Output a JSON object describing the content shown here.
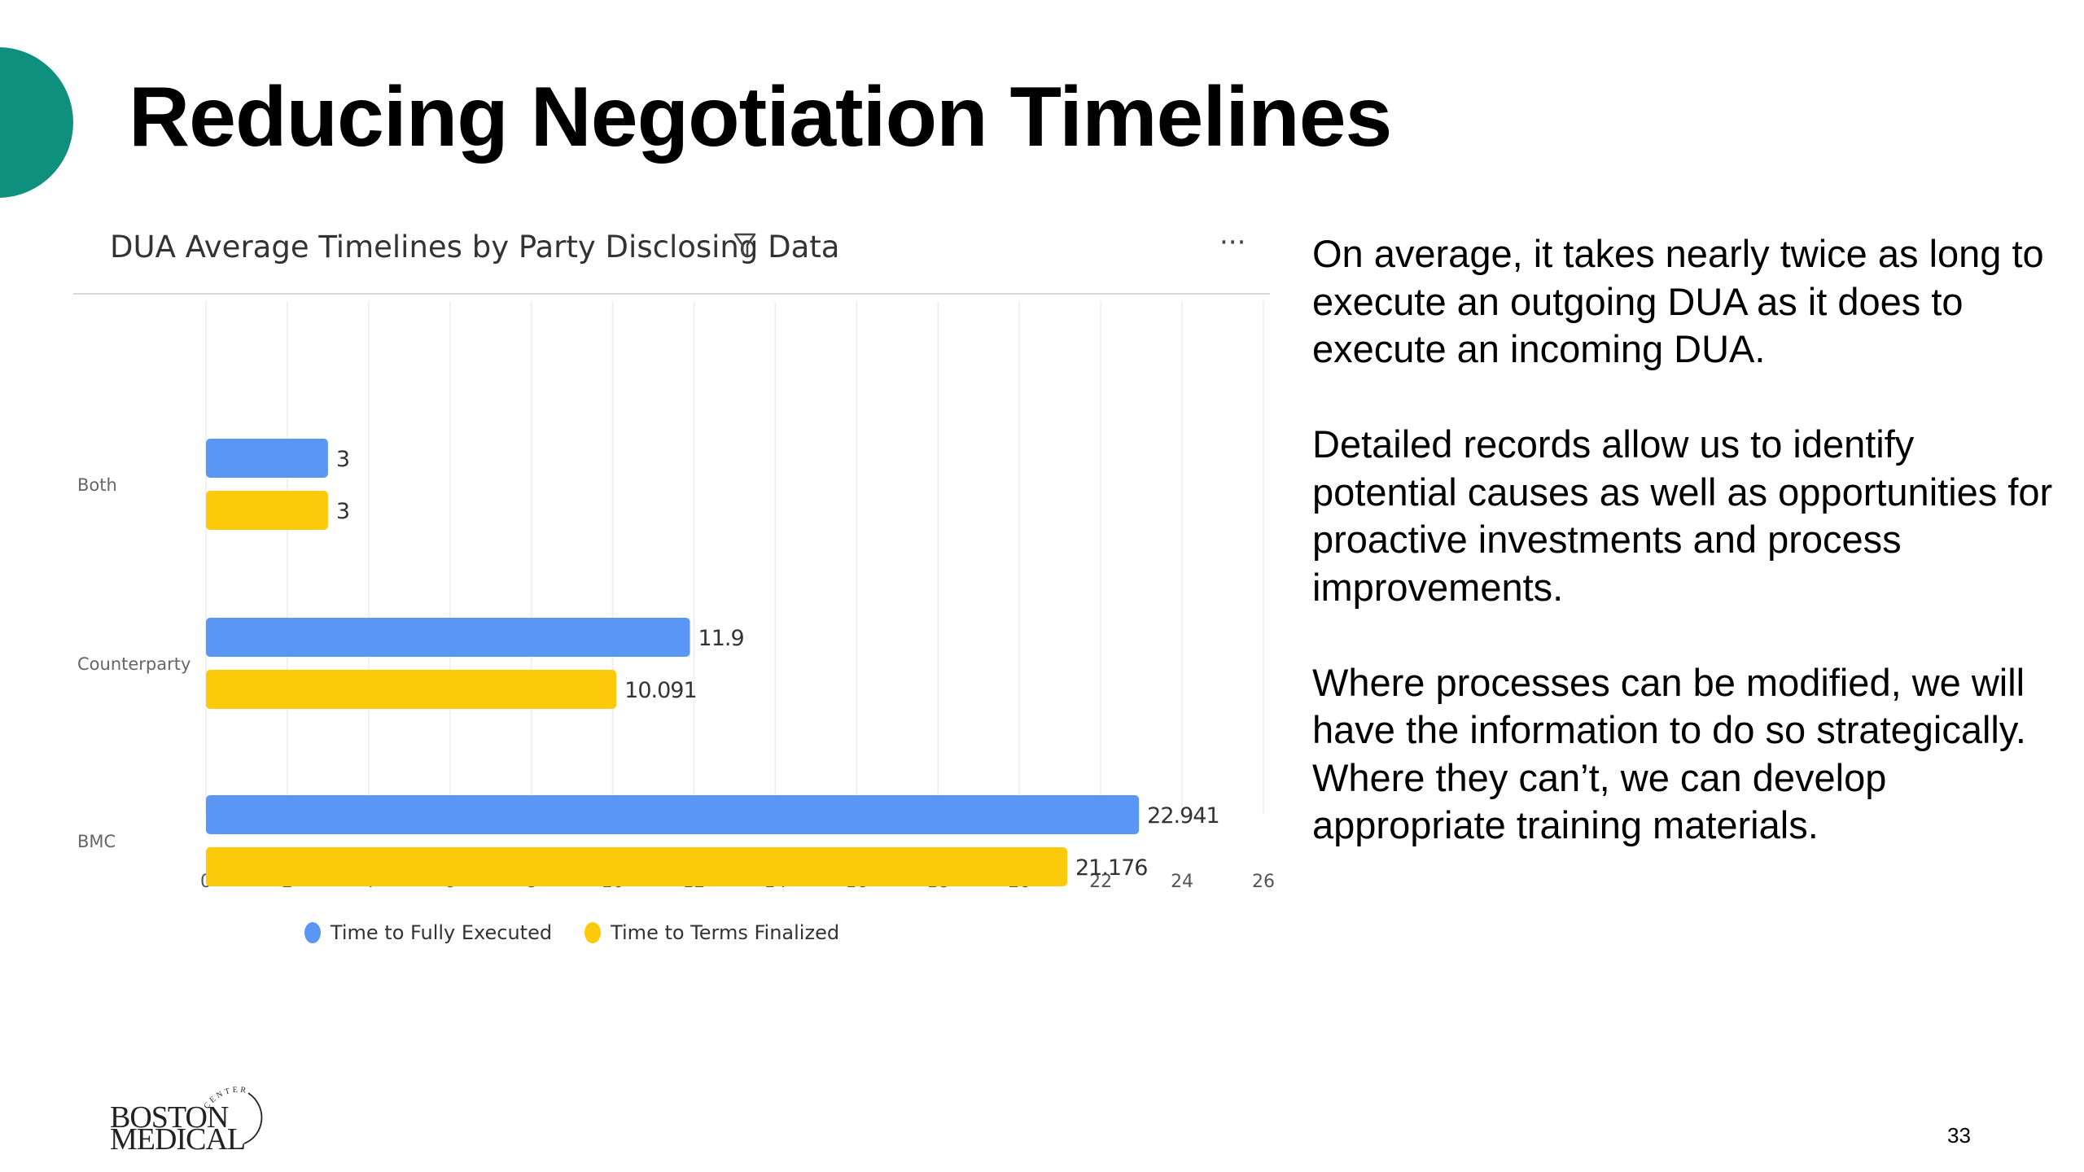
{
  "slide": {
    "title": "Reducing Negotiation Timelines",
    "page_number": "33",
    "accent_color": "#0f8f7d"
  },
  "chart_panel": {
    "filter_icon": "filter-icon",
    "more_icon": "more-options-icon",
    "more_label": "···"
  },
  "chart_data": {
    "type": "bar",
    "orientation": "horizontal",
    "title": "DUA Average Timelines by Party Disclosing Data",
    "categories": [
      "Both",
      "Counterparty",
      "BMC"
    ],
    "series": [
      {
        "name": "Time to Fully Executed",
        "color": "#5a97f5",
        "values": [
          3,
          11.9,
          22.941
        ],
        "labels": [
          "3",
          "11.9",
          "22.941"
        ]
      },
      {
        "name": "Time to Terms Finalized",
        "color": "#fcca0a",
        "values": [
          3,
          10.091,
          21.176
        ],
        "labels": [
          "3",
          "10.091",
          "21.176"
        ]
      }
    ],
    "xlim": [
      0,
      26
    ],
    "xticks": [
      0,
      2,
      4,
      6,
      8,
      10,
      12,
      14,
      16,
      18,
      20,
      22,
      24,
      26
    ],
    "xtick_labels": [
      "0",
      "2",
      "4",
      "6",
      "8",
      "10",
      "12",
      "14",
      "16",
      "18",
      "20",
      "22",
      "24",
      "26"
    ],
    "grid": "vertical",
    "legend_position": "bottom"
  },
  "body": {
    "paragraphs": [
      "On average, it takes nearly twice as long to execute an outgoing DUA as it does to execute an incoming DUA.",
      "Detailed records allow us to identify potential causes as well as opportunities for proactive investments and process improvements.",
      "Where processes can be modified, we will have the information to do so strategically. Where they can’t, we can develop appropriate training materials."
    ]
  },
  "logo": {
    "line1": "BOSTON",
    "line2": "MEDICAL",
    "arc_text": "CENTER"
  }
}
